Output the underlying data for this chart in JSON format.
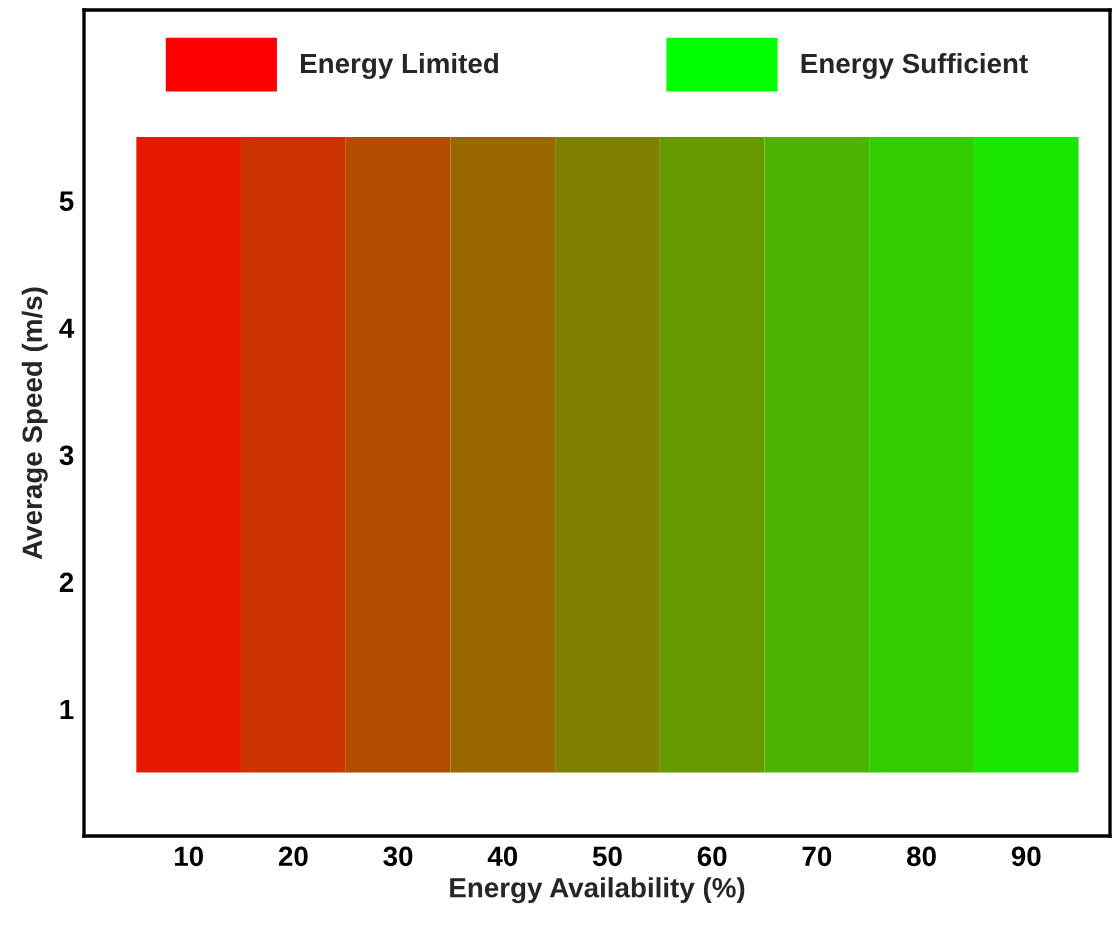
{
  "chart_data": {
    "type": "bar",
    "xlabel": "Energy Availability (%)",
    "ylabel": "Average Speed (m/s)",
    "x": [
      10,
      20,
      30,
      40,
      50,
      60,
      70,
      80,
      90
    ],
    "series": [
      {
        "name": "Energy Limited",
        "color": "#ff0000",
        "values": [
          null,
          null,
          null,
          null,
          null,
          null,
          null,
          null,
          null
        ]
      },
      {
        "name": "Energy Sufficient",
        "color": "#00ff00",
        "values": [
          null,
          null,
          null,
          null,
          null,
          null,
          null,
          null,
          null
        ]
      },
      {
        "values": [
          5,
          5,
          5,
          5,
          5,
          5,
          5,
          5,
          5
        ],
        "colors": [
          "#e61a00",
          "#cc3300",
          "#b34d00",
          "#996600",
          "#808000",
          "#669900",
          "#4db300",
          "#33cc00",
          "#1ae600"
        ],
        "base": [
          0.5,
          0.5,
          0.5,
          0.5,
          0.5,
          0.5,
          0.5,
          0.5,
          0.5
        ]
      }
    ],
    "xlim": [
      0,
      98
    ],
    "xticks": [
      10,
      20,
      30,
      40,
      50,
      60,
      70,
      80,
      90
    ],
    "ylim": [
      0,
      6.5
    ],
    "yticks": [
      1,
      2,
      3,
      4,
      5
    ],
    "grid": false,
    "legend": "top"
  }
}
